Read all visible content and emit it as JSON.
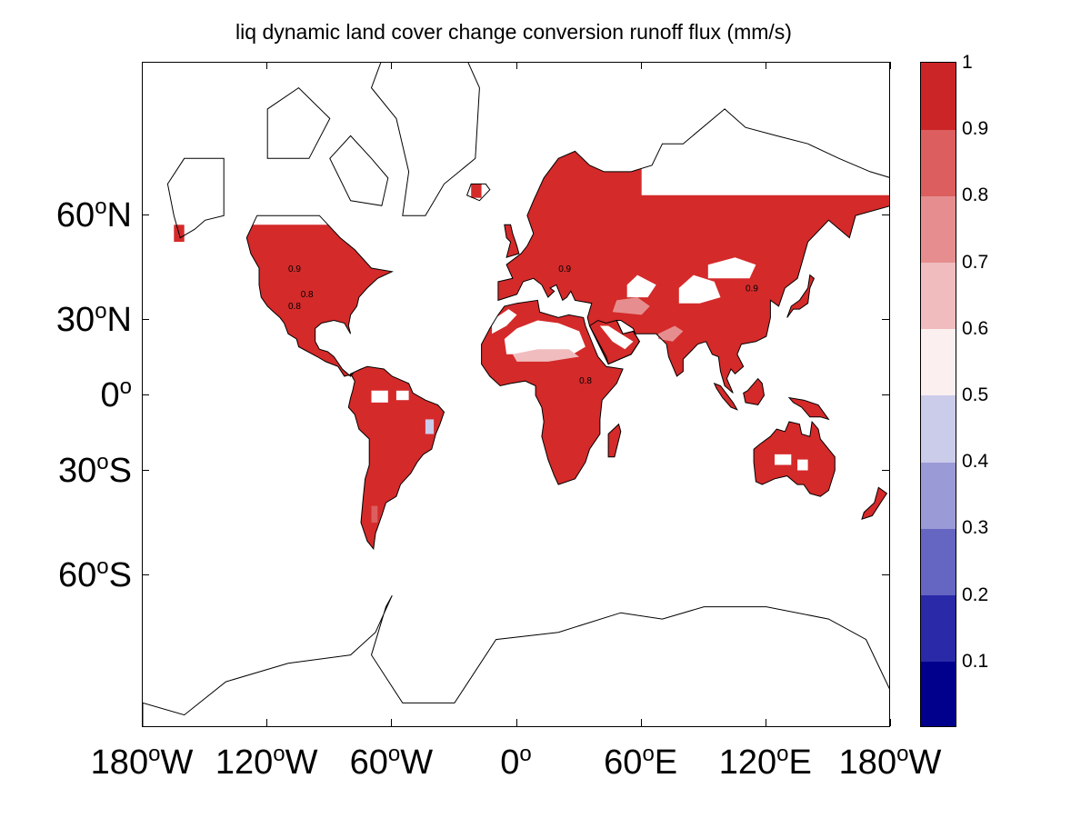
{
  "title": "liq dynamic land cover change conversion runoff flux (mm/s)",
  "lat_labels": [
    {
      "deg": "60",
      "hemi": "N",
      "value": 60
    },
    {
      "deg": "30",
      "hemi": "N",
      "value": 30
    },
    {
      "deg": "0",
      "hemi": "",
      "value": 0
    },
    {
      "deg": "30",
      "hemi": "S",
      "value": -30
    },
    {
      "deg": "60",
      "hemi": "S",
      "value": -60
    }
  ],
  "lon_labels": [
    {
      "deg": "180",
      "hemi": "W",
      "value": -180
    },
    {
      "deg": "120",
      "hemi": "W",
      "value": -120
    },
    {
      "deg": "60",
      "hemi": "W",
      "value": -60
    },
    {
      "deg": "0",
      "hemi": "",
      "value": 0
    },
    {
      "deg": "60",
      "hemi": "E",
      "value": 60
    },
    {
      "deg": "120",
      "hemi": "E",
      "value": 120
    },
    {
      "deg": "180",
      "hemi": "W",
      "value": 180
    }
  ],
  "colorbar": {
    "min": 0,
    "max": 1,
    "tick_labels": [
      "1",
      "0.9",
      "0.8",
      "0.7",
      "0.6",
      "0.5",
      "0.4",
      "0.3",
      "0.2",
      "0.1"
    ],
    "tick_values": [
      1,
      0.9,
      0.8,
      0.7,
      0.6,
      0.5,
      0.4,
      0.3,
      0.2,
      0.1
    ],
    "band_colors": [
      "#00008c",
      "#2a2aa8",
      "#6565c2",
      "#9a9ad6",
      "#cbcbea",
      "#fbeff0",
      "#f1bcbe",
      "#e68e8f",
      "#dc5e5e",
      "#cc2527"
    ]
  },
  "map": {
    "projection": "mercator",
    "lat_range": [
      -80,
      80
    ],
    "lon_range": [
      -180,
      180
    ],
    "land_color": "#d42a2a",
    "contour_labels": [
      "0.9",
      "0.8",
      "0.8",
      "0.9",
      "0.9",
      "0.8"
    ]
  }
}
